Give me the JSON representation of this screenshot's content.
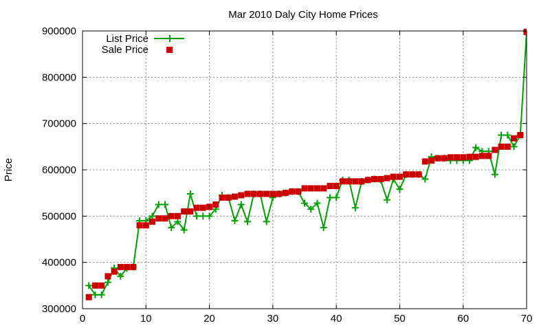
{
  "chart_data": {
    "type": "line",
    "title": "Mar 2010 Daly City Home Prices",
    "xlabel": "",
    "ylabel": "Price",
    "xlim": [
      0,
      70
    ],
    "ylim": [
      300000,
      900000
    ],
    "x_ticks": [
      0,
      10,
      20,
      30,
      40,
      50,
      60,
      70
    ],
    "y_ticks": [
      300000,
      400000,
      500000,
      600000,
      700000,
      800000,
      900000
    ],
    "grid": true,
    "legend_position": "top-left",
    "series": [
      {
        "name": "List Price",
        "style": "line-plus",
        "color": "#00a000",
        "points": [
          [
            1,
            350000
          ],
          [
            2,
            330000
          ],
          [
            3,
            330000
          ],
          [
            4,
            357000
          ],
          [
            5,
            388000
          ],
          [
            6,
            370000
          ],
          [
            7,
            387000
          ],
          [
            8,
            390000
          ],
          [
            9,
            490000
          ],
          [
            10,
            490000
          ],
          [
            11,
            500000
          ],
          [
            12,
            525000
          ],
          [
            13,
            525000
          ],
          [
            14,
            475000
          ],
          [
            15,
            488000
          ],
          [
            16,
            470000
          ],
          [
            17,
            548000
          ],
          [
            18,
            500000
          ],
          [
            19,
            500000
          ],
          [
            20,
            500000
          ],
          [
            21,
            515000
          ],
          [
            22,
            545000
          ],
          [
            23,
            540000
          ],
          [
            24,
            490000
          ],
          [
            25,
            525000
          ],
          [
            26,
            488000
          ],
          [
            27,
            548000
          ],
          [
            28,
            548000
          ],
          [
            29,
            488000
          ],
          [
            30,
            540000
          ],
          [
            31,
            548000
          ],
          [
            32,
            550000
          ],
          [
            33,
            553000
          ],
          [
            34,
            553000
          ],
          [
            35,
            528000
          ],
          [
            36,
            515000
          ],
          [
            37,
            528000
          ],
          [
            38,
            475000
          ],
          [
            39,
            540000
          ],
          [
            40,
            540000
          ],
          [
            41,
            578000
          ],
          [
            42,
            578000
          ],
          [
            43,
            518000
          ],
          [
            44,
            575000
          ],
          [
            45,
            578000
          ],
          [
            46,
            580000
          ],
          [
            47,
            578000
          ],
          [
            48,
            535000
          ],
          [
            49,
            580000
          ],
          [
            50,
            558000
          ],
          [
            51,
            590000
          ],
          [
            52,
            590000
          ],
          [
            53,
            590000
          ],
          [
            54,
            580000
          ],
          [
            55,
            628000
          ],
          [
            56,
            625000
          ],
          [
            57,
            625000
          ],
          [
            58,
            620000
          ],
          [
            59,
            620000
          ],
          [
            60,
            620000
          ],
          [
            61,
            620000
          ],
          [
            62,
            648000
          ],
          [
            63,
            640000
          ],
          [
            64,
            640000
          ],
          [
            65,
            590000
          ],
          [
            66,
            675000
          ],
          [
            67,
            675000
          ],
          [
            68,
            650000
          ],
          [
            69,
            675000
          ],
          [
            70,
            898000
          ],
          [
            71,
            898000
          ]
        ]
      },
      {
        "name": "Sale Price",
        "style": "square-points",
        "color": "#cc0000",
        "points": [
          [
            1,
            325000
          ],
          [
            2,
            350000
          ],
          [
            3,
            350000
          ],
          [
            4,
            370000
          ],
          [
            5,
            380000
          ],
          [
            6,
            390000
          ],
          [
            7,
            390000
          ],
          [
            8,
            390000
          ],
          [
            9,
            480000
          ],
          [
            10,
            480000
          ],
          [
            11,
            488000
          ],
          [
            12,
            495000
          ],
          [
            13,
            495000
          ],
          [
            14,
            500000
          ],
          [
            15,
            500000
          ],
          [
            16,
            510000
          ],
          [
            17,
            510000
          ],
          [
            18,
            518000
          ],
          [
            19,
            518000
          ],
          [
            20,
            520000
          ],
          [
            21,
            525000
          ],
          [
            22,
            540000
          ],
          [
            23,
            540000
          ],
          [
            24,
            542000
          ],
          [
            25,
            545000
          ],
          [
            26,
            548000
          ],
          [
            27,
            548000
          ],
          [
            28,
            548000
          ],
          [
            29,
            548000
          ],
          [
            30,
            548000
          ],
          [
            31,
            548000
          ],
          [
            32,
            550000
          ],
          [
            33,
            553000
          ],
          [
            34,
            553000
          ],
          [
            35,
            560000
          ],
          [
            36,
            560000
          ],
          [
            37,
            560000
          ],
          [
            38,
            560000
          ],
          [
            39,
            565000
          ],
          [
            40,
            565000
          ],
          [
            41,
            575000
          ],
          [
            42,
            575000
          ],
          [
            43,
            575000
          ],
          [
            44,
            575000
          ],
          [
            45,
            578000
          ],
          [
            46,
            580000
          ],
          [
            47,
            580000
          ],
          [
            48,
            582000
          ],
          [
            49,
            585000
          ],
          [
            50,
            585000
          ],
          [
            51,
            590000
          ],
          [
            52,
            590000
          ],
          [
            53,
            590000
          ],
          [
            54,
            618000
          ],
          [
            55,
            620000
          ],
          [
            56,
            625000
          ],
          [
            57,
            625000
          ],
          [
            58,
            627000
          ],
          [
            59,
            627000
          ],
          [
            60,
            627000
          ],
          [
            61,
            628000
          ],
          [
            62,
            628000
          ],
          [
            63,
            630000
          ],
          [
            64,
            630000
          ],
          [
            65,
            643000
          ],
          [
            66,
            650000
          ],
          [
            67,
            650000
          ],
          [
            68,
            668000
          ],
          [
            69,
            675000
          ],
          [
            70,
            898000
          ],
          [
            71,
            898000
          ]
        ]
      }
    ]
  }
}
